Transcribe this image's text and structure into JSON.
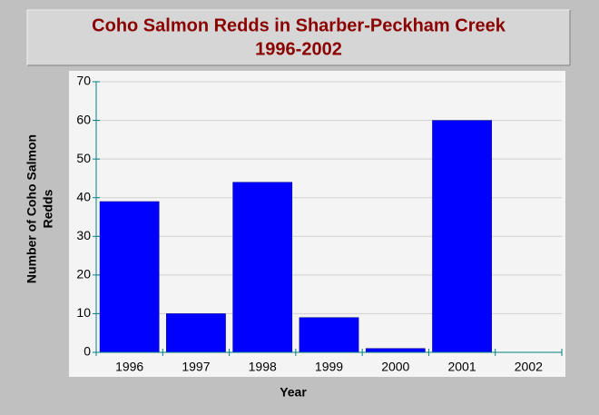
{
  "chart_data": {
    "type": "bar",
    "title": [
      "Coho Salmon Redds in Sharber-Peckham Creek",
      "1996-2002"
    ],
    "xlabel": "Year",
    "ylabel": [
      "Number of Coho Salmon",
      "Redds"
    ],
    "categories": [
      "1996",
      "1997",
      "1998",
      "1999",
      "2000",
      "2001",
      "2002"
    ],
    "values": [
      39,
      10,
      44,
      9,
      1,
      60,
      0
    ],
    "color": "#0000ff",
    "ylim": [
      0,
      70
    ],
    "yticks": [
      0,
      10,
      20,
      30,
      40,
      50,
      60,
      70
    ],
    "grid": true
  }
}
